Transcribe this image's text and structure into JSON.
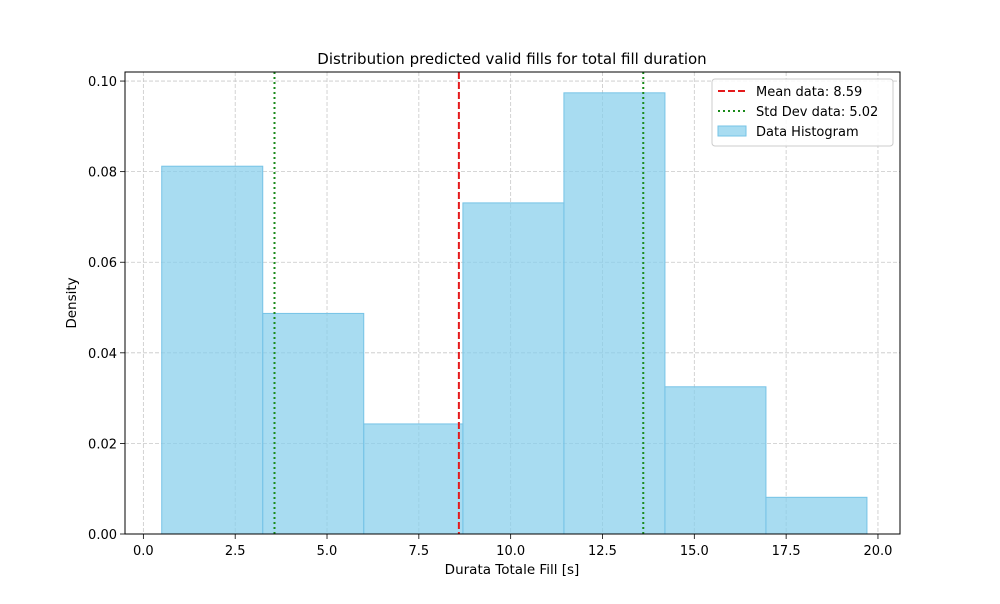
{
  "chart_data": {
    "type": "histogram",
    "title": "Distribution predicted valid fills for total fill duration",
    "xlabel": "Durata Totale Fill [s]",
    "ylabel": "Density",
    "xlim": [
      -0.5,
      20.6
    ],
    "ylim": [
      0.0,
      0.102
    ],
    "grid": true,
    "legend_position": "top-right",
    "x_ticks": [
      "0.0",
      "2.5",
      "5.0",
      "7.5",
      "10.0",
      "12.5",
      "15.0",
      "17.5",
      "20.0"
    ],
    "y_ticks": [
      "0.00",
      "0.02",
      "0.04",
      "0.06",
      "0.08",
      "0.10"
    ],
    "bins": [
      {
        "start": 0.5,
        "end": 3.25,
        "value": 0.0812
      },
      {
        "start": 3.25,
        "end": 6.0,
        "value": 0.0487
      },
      {
        "start": 6.0,
        "end": 8.7,
        "value": 0.0243
      },
      {
        "start": 8.7,
        "end": 11.45,
        "value": 0.0731
      },
      {
        "start": 11.45,
        "end": 14.2,
        "value": 0.0974
      },
      {
        "start": 14.2,
        "end": 16.95,
        "value": 0.0325
      },
      {
        "start": 16.95,
        "end": 19.7,
        "value": 0.0081
      }
    ],
    "mean": 8.59,
    "std": 5.02,
    "std_lines": [
      3.57,
      13.61
    ],
    "legend": [
      {
        "label": "Mean data: 8.59",
        "style": "dashed",
        "color": "#e41a1c"
      },
      {
        "label": "Std Dev data: 5.02",
        "style": "dotted",
        "color": "#1a8a1a"
      },
      {
        "label": "Data Histogram",
        "style": "patch",
        "color": "#87ceeb"
      }
    ],
    "colors": {
      "bar_fill": "#87ceeb",
      "bar_edge": "#76c3e6",
      "mean_line": "#e41a1c",
      "std_line": "#1a8a1a",
      "grid": "#c8c8c8"
    }
  }
}
